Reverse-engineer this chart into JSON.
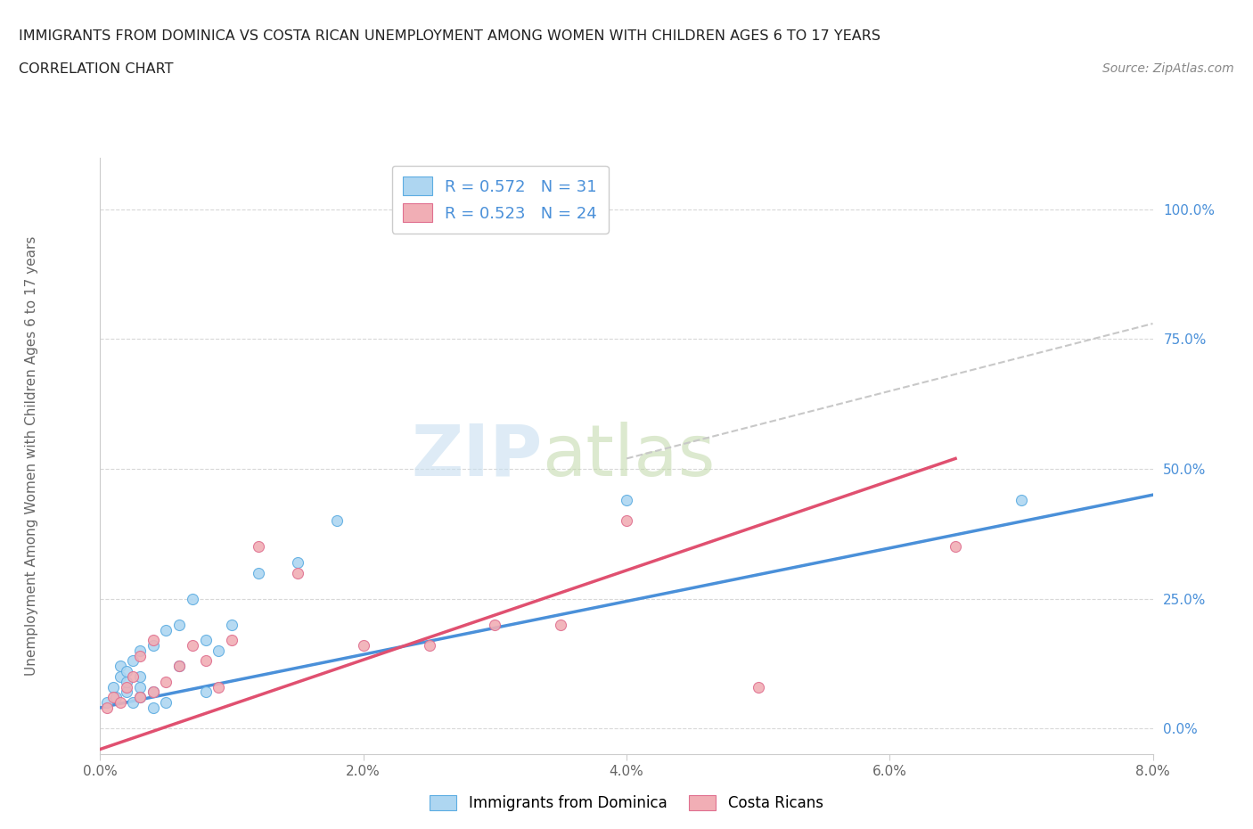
{
  "title": "IMMIGRANTS FROM DOMINICA VS COSTA RICAN UNEMPLOYMENT AMONG WOMEN WITH CHILDREN AGES 6 TO 17 YEARS",
  "subtitle": "CORRELATION CHART",
  "source": "Source: ZipAtlas.com",
  "ylabel": "Unemployment Among Women with Children Ages 6 to 17 years",
  "xlim": [
    0.0,
    0.08
  ],
  "ylim": [
    -0.05,
    1.1
  ],
  "xticks": [
    0.0,
    0.02,
    0.04,
    0.06,
    0.08
  ],
  "xtick_labels": [
    "0.0%",
    "2.0%",
    "4.0%",
    "6.0%",
    "8.0%"
  ],
  "yticks": [
    0.0,
    0.25,
    0.5,
    0.75,
    1.0
  ],
  "ytick_labels": [
    "0.0%",
    "25.0%",
    "50.0%",
    "75.0%",
    "100.0%"
  ],
  "blue_fill_color": "#aed6f1",
  "blue_edge_color": "#5dade2",
  "pink_fill_color": "#f1aeb5",
  "pink_edge_color": "#e07090",
  "blue_line_color": "#4a90d9",
  "pink_line_color": "#e05070",
  "dashed_line_color": "#c8c8c8",
  "R_blue": 0.572,
  "N_blue": 31,
  "R_pink": 0.523,
  "N_pink": 24,
  "legend_text_color": "#4a90d9",
  "legend_label_blue": "Immigrants from Dominica",
  "legend_label_pink": "Costa Ricans",
  "watermark_zip": "ZIP",
  "watermark_atlas": "atlas",
  "blue_scatter_x": [
    0.0005,
    0.001,
    0.0012,
    0.0015,
    0.0015,
    0.002,
    0.002,
    0.002,
    0.0025,
    0.0025,
    0.003,
    0.003,
    0.003,
    0.003,
    0.004,
    0.004,
    0.004,
    0.005,
    0.005,
    0.006,
    0.006,
    0.007,
    0.008,
    0.008,
    0.009,
    0.01,
    0.012,
    0.015,
    0.018,
    0.04,
    0.07
  ],
  "blue_scatter_y": [
    0.05,
    0.08,
    0.06,
    0.1,
    0.12,
    0.07,
    0.09,
    0.11,
    0.05,
    0.13,
    0.06,
    0.08,
    0.1,
    0.15,
    0.04,
    0.07,
    0.16,
    0.05,
    0.19,
    0.12,
    0.2,
    0.25,
    0.07,
    0.17,
    0.15,
    0.2,
    0.3,
    0.32,
    0.4,
    0.44,
    0.44
  ],
  "pink_scatter_x": [
    0.0005,
    0.001,
    0.0015,
    0.002,
    0.0025,
    0.003,
    0.003,
    0.004,
    0.004,
    0.005,
    0.006,
    0.007,
    0.008,
    0.009,
    0.01,
    0.012,
    0.015,
    0.02,
    0.025,
    0.03,
    0.035,
    0.04,
    0.05,
    0.065
  ],
  "pink_scatter_y": [
    0.04,
    0.06,
    0.05,
    0.08,
    0.1,
    0.06,
    0.14,
    0.07,
    0.17,
    0.09,
    0.12,
    0.16,
    0.13,
    0.08,
    0.17,
    0.35,
    0.3,
    0.16,
    0.16,
    0.2,
    0.2,
    0.4,
    0.08,
    0.35
  ],
  "blue_trend_x": [
    0.0,
    0.08
  ],
  "blue_trend_y": [
    0.04,
    0.45
  ],
  "pink_trend_x": [
    0.0,
    0.065
  ],
  "pink_trend_y": [
    -0.04,
    0.52
  ],
  "dash_trend_x": [
    0.04,
    0.08
  ],
  "dash_trend_y": [
    0.52,
    0.78
  ],
  "background_color": "#ffffff",
  "grid_color": "#d8d8d8",
  "spine_color": "#cccccc",
  "title_color": "#222222",
  "source_color": "#888888",
  "tick_color": "#666666"
}
